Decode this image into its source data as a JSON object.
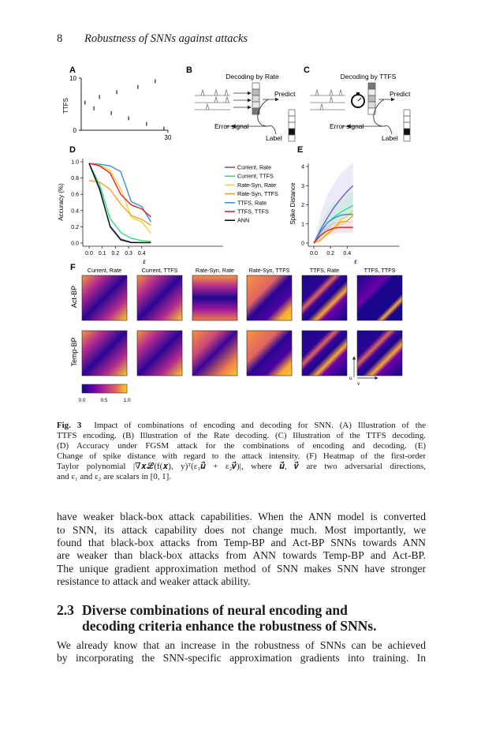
{
  "header": {
    "page_number": "8",
    "running_title": "Robustness of SNNs against attacks"
  },
  "figure": {
    "panel_labels": [
      "A",
      "B",
      "C",
      "D",
      "E",
      "F"
    ],
    "panel_a": {
      "ylabel": "TTFS",
      "yticks": [
        "0",
        "10"
      ],
      "xticks": [
        "30"
      ],
      "marks": [
        [
          1.3,
          5.3
        ],
        [
          4.4,
          4.2
        ],
        [
          6.3,
          6.4
        ],
        [
          10.4,
          3.3
        ],
        [
          12.3,
          7.3
        ],
        [
          16.4,
          2.3
        ],
        [
          19.6,
          8.3
        ],
        [
          22.6,
          1.2
        ],
        [
          25.6,
          9.4
        ],
        [
          28.6,
          0.3
        ]
      ]
    },
    "panel_b": {
      "title": "Decoding by Rate",
      "predict": "Predict",
      "error": "Error signal",
      "label": "Label"
    },
    "panel_c": {
      "title": "Decoding by TTFS",
      "predict": "Predict",
      "error": "Error signal",
      "label": "Label"
    },
    "panel_f": {
      "columns": [
        "Current, Rate",
        "Current, TTFS",
        "Rate-Syn, Rate",
        "Rate-Syn, TTFS",
        "TTFS, Rate",
        "TTFS, TTFS"
      ],
      "rows": [
        "Act-BP",
        "Temp-BP"
      ],
      "axis_u": "u",
      "axis_v": "v",
      "colorbar_ticks": [
        "0.0",
        "0.5",
        "1.0"
      ],
      "colormap": "plasma"
    }
  },
  "chart_data": [
    {
      "panel": "D",
      "type": "line",
      "xlabel": "ε",
      "ylabel": "Accuracy (%)",
      "xlim": [
        0,
        0.47
      ],
      "ylim": [
        0,
        1.0
      ],
      "xticks": [
        "0.0",
        "0.1",
        "0.2",
        "0.3",
        "0.4"
      ],
      "yticks": [
        "0.0",
        "0.2",
        "0.4",
        "0.6",
        "0.8",
        "1.0"
      ],
      "legend": "right",
      "x": [
        0,
        0.08,
        0.16,
        0.24,
        0.32,
        0.4,
        0.47
      ],
      "series": [
        {
          "name": "Current, Rate",
          "color": "#6f5bd0",
          "values": [
            0.98,
            0.65,
            0.21,
            0.05,
            0.01,
            0.005,
            0.005
          ]
        },
        {
          "name": "Current, TTFS",
          "color": "#2fe07f",
          "values": [
            0.98,
            0.72,
            0.3,
            0.13,
            0.06,
            0.03,
            0.02
          ]
        },
        {
          "name": "Rate-Syn, Rate",
          "color": "#f5d236",
          "values": [
            0.98,
            0.96,
            0.89,
            0.67,
            0.32,
            0.26,
            0.12
          ]
        },
        {
          "name": "Rate-Syn, TTFS",
          "color": "#f2a324",
          "values": [
            0.77,
            0.75,
            0.66,
            0.48,
            0.34,
            0.29,
            0.22
          ]
        },
        {
          "name": "TTFS, Rate",
          "color": "#3b8fe2",
          "values": [
            0.98,
            0.97,
            0.95,
            0.88,
            0.51,
            0.45,
            0.26
          ]
        },
        {
          "name": "TTFS, TTFS",
          "color": "#e62424",
          "values": [
            0.98,
            0.95,
            0.86,
            0.6,
            0.47,
            0.42,
            0.32
          ]
        },
        {
          "name": "ANN",
          "color": "#111111",
          "values": [
            0.98,
            0.67,
            0.2,
            0.04,
            0.005,
            0.005,
            0.005
          ]
        }
      ]
    },
    {
      "panel": "E",
      "type": "line",
      "xlabel": "ε",
      "ylabel": "Spike Distance",
      "xlim": [
        0,
        0.47
      ],
      "ylim": [
        0,
        4.2
      ],
      "xticks": [
        "0.0",
        "0.2",
        "0.4"
      ],
      "yticks": [
        "0",
        "1",
        "2",
        "3",
        "4"
      ],
      "x": [
        0,
        0.08,
        0.16,
        0.24,
        0.32,
        0.4,
        0.47
      ],
      "series": [
        {
          "name": "Current, Rate",
          "color": "#6f5bd0",
          "values": [
            0,
            0.7,
            1.3,
            1.85,
            2.3,
            2.7,
            3.0
          ],
          "band_upper": [
            0,
            1.5,
            2.5,
            3.1,
            3.6,
            3.95,
            4.2
          ],
          "band_lower": [
            0,
            0.3,
            0.7,
            1.0,
            1.2,
            1.4,
            1.5
          ]
        },
        {
          "name": "Current, TTFS",
          "color": "#2fe07f",
          "values": [
            0,
            0.55,
            1.05,
            1.35,
            1.6,
            1.8,
            1.97
          ],
          "band_upper": [
            0,
            1.0,
            1.7,
            2.1,
            2.35,
            2.55,
            2.7
          ],
          "band_lower": [
            0,
            0.2,
            0.5,
            0.7,
            0.9,
            1.0,
            1.1
          ]
        },
        {
          "name": "Rate-Syn, Rate",
          "color": "#f5d236",
          "values": [
            0,
            0.15,
            0.5,
            0.8,
            1.2,
            1.4,
            1.7
          ]
        },
        {
          "name": "Rate-Syn, TTFS",
          "color": "#f2a324",
          "values": [
            0,
            0.15,
            0.45,
            0.75,
            1.1,
            1.15,
            1.45
          ]
        },
        {
          "name": "TTFS, Rate",
          "color": "#3b8fe2",
          "values": [
            0,
            0.6,
            1.05,
            1.3,
            1.45,
            1.5,
            1.5
          ]
        },
        {
          "name": "TTFS, TTFS",
          "color": "#e62424",
          "values": [
            0,
            0.4,
            0.65,
            0.78,
            0.82,
            0.82,
            0.82
          ],
          "band_upper": [
            0,
            0.6,
            0.95,
            1.1,
            1.15,
            1.15,
            1.15
          ],
          "band_lower": [
            0,
            0.2,
            0.4,
            0.5,
            0.55,
            0.55,
            0.55
          ]
        }
      ]
    }
  ],
  "caption": {
    "label": "Fig. 3",
    "lines": [
      "Impact of combinations of encoding and decoding for SNN. (A) Illustration of the",
      "TTFS encoding. (B) Illustration of the Rate decoding. (C) Illustration of the TTFS decoding.",
      "(D) Accuracy under FGSM attack for the combinations of encoding and decoding. (E)",
      "Change of spike distance with regard to the attack intensity. (F) Heatmap of the first-order",
      "Taylor polynomial |∇𝒙ℒ(f(𝒙), y)ᵀ(ε₁𝒖⃗ + ε₂𝒗⃗)|, where 𝒖⃗, 𝒗⃗ are two adversarial directions,",
      "and ε₁ and ε₂ are scalars in [0, 1]."
    ]
  },
  "paragraph1": [
    "have weaker black-box attack capabilities. When the ANN model is converted",
    "to SNN, its attack capability does not change much. Most importantly, we",
    "found that black-box attacks from Temp-BP and Act-BP SNNs towards ANN",
    "are weaker than black-box attacks from ANN towards Temp-BP and Act-BP.",
    "The unique gradient approximation method of SNN makes SNN have stronger",
    "resistance to attack and weaker attack ability."
  ],
  "section": {
    "number": "2.3",
    "title_lines": [
      "Diverse combinations of neural encoding and",
      "decoding criteria enhance the robustness of SNNs."
    ]
  },
  "paragraph2": [
    "We already know that an increase in the robustness of SNNs can be achieved",
    "by incorporating the SNN-specific approximation gradients into training. In"
  ]
}
